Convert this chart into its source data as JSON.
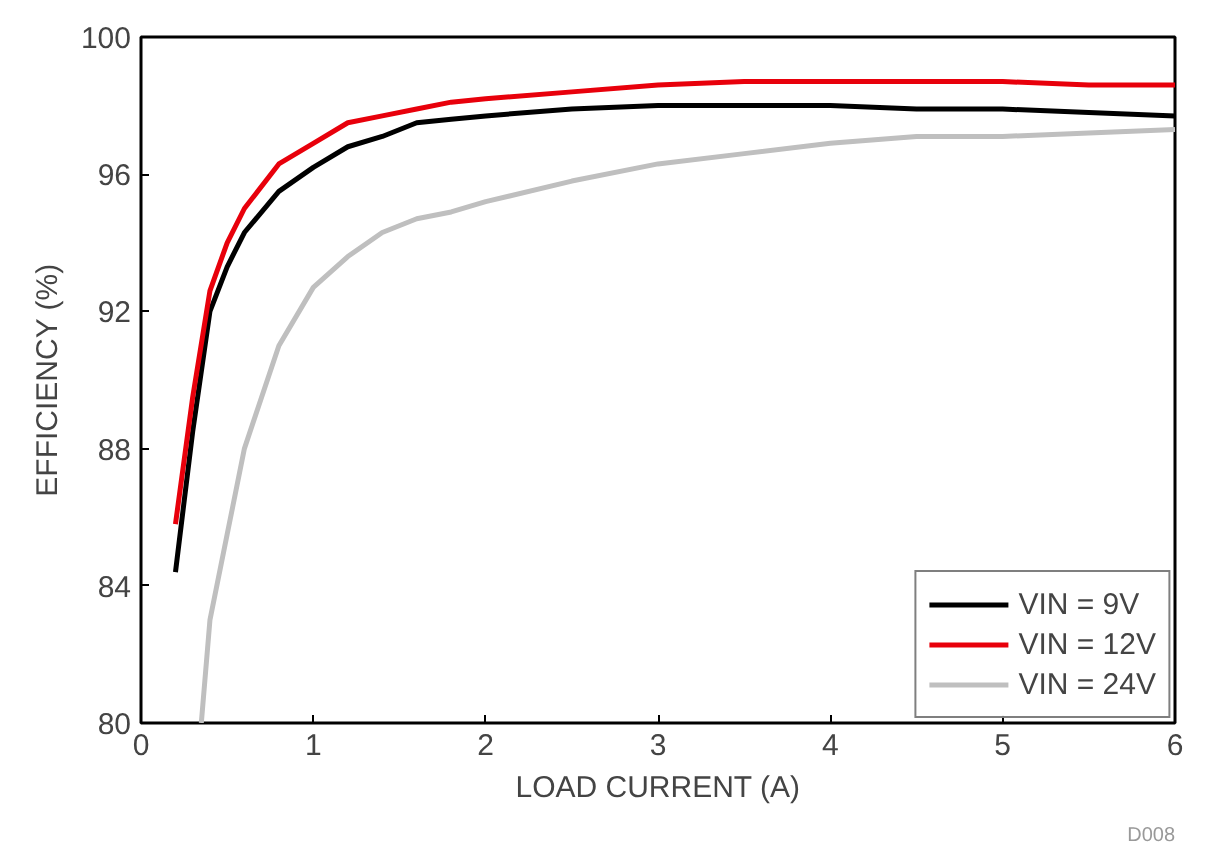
{
  "chart_data": {
    "type": "line",
    "xlabel": "LOAD CURRENT (A)",
    "ylabel": "EFFICIENCY (%)",
    "xlim": [
      0,
      6
    ],
    "ylim": [
      80,
      100
    ],
    "xticks": [
      0,
      1,
      2,
      3,
      4,
      5,
      6
    ],
    "yticks": [
      80,
      84,
      88,
      92,
      96,
      100
    ],
    "grid": false,
    "legend": "bottom right",
    "line_style": "solid",
    "marker": "none",
    "annotations": [
      "D008"
    ],
    "series": [
      {
        "name": "VIN = 9V",
        "color": "#000000",
        "x": [
          0.2,
          0.3,
          0.4,
          0.5,
          0.6,
          0.8,
          1.0,
          1.2,
          1.4,
          1.6,
          1.8,
          2.0,
          2.5,
          3.0,
          3.5,
          4.0,
          4.5,
          5.0,
          5.5,
          6.0
        ],
        "values": [
          84.4,
          88.5,
          92.0,
          93.3,
          94.3,
          95.5,
          96.2,
          96.8,
          97.1,
          97.5,
          97.6,
          97.7,
          97.9,
          98.0,
          98.0,
          98.0,
          97.9,
          97.9,
          97.8,
          97.7
        ]
      },
      {
        "name": "VIN = 12V",
        "color": "#e8000b",
        "x": [
          0.2,
          0.3,
          0.4,
          0.5,
          0.6,
          0.8,
          1.0,
          1.2,
          1.4,
          1.6,
          1.8,
          2.0,
          2.5,
          3.0,
          3.5,
          4.0,
          4.5,
          5.0,
          5.5,
          6.0
        ],
        "values": [
          85.8,
          89.5,
          92.6,
          94.0,
          95.0,
          96.3,
          96.9,
          97.5,
          97.7,
          97.9,
          98.1,
          98.2,
          98.4,
          98.6,
          98.7,
          98.7,
          98.7,
          98.7,
          98.6,
          98.6
        ]
      },
      {
        "name": "VIN = 24V",
        "color": "#bfbfbf",
        "x": [
          0.35,
          0.4,
          0.5,
          0.6,
          0.8,
          1.0,
          1.2,
          1.4,
          1.6,
          1.8,
          2.0,
          2.5,
          3.0,
          3.5,
          4.0,
          4.5,
          5.0,
          5.5,
          6.0
        ],
        "values": [
          80.0,
          83.0,
          85.5,
          88.0,
          91.0,
          92.7,
          93.6,
          94.3,
          94.7,
          94.9,
          95.2,
          95.8,
          96.3,
          96.6,
          96.9,
          97.1,
          97.1,
          97.2,
          97.3
        ]
      }
    ]
  }
}
